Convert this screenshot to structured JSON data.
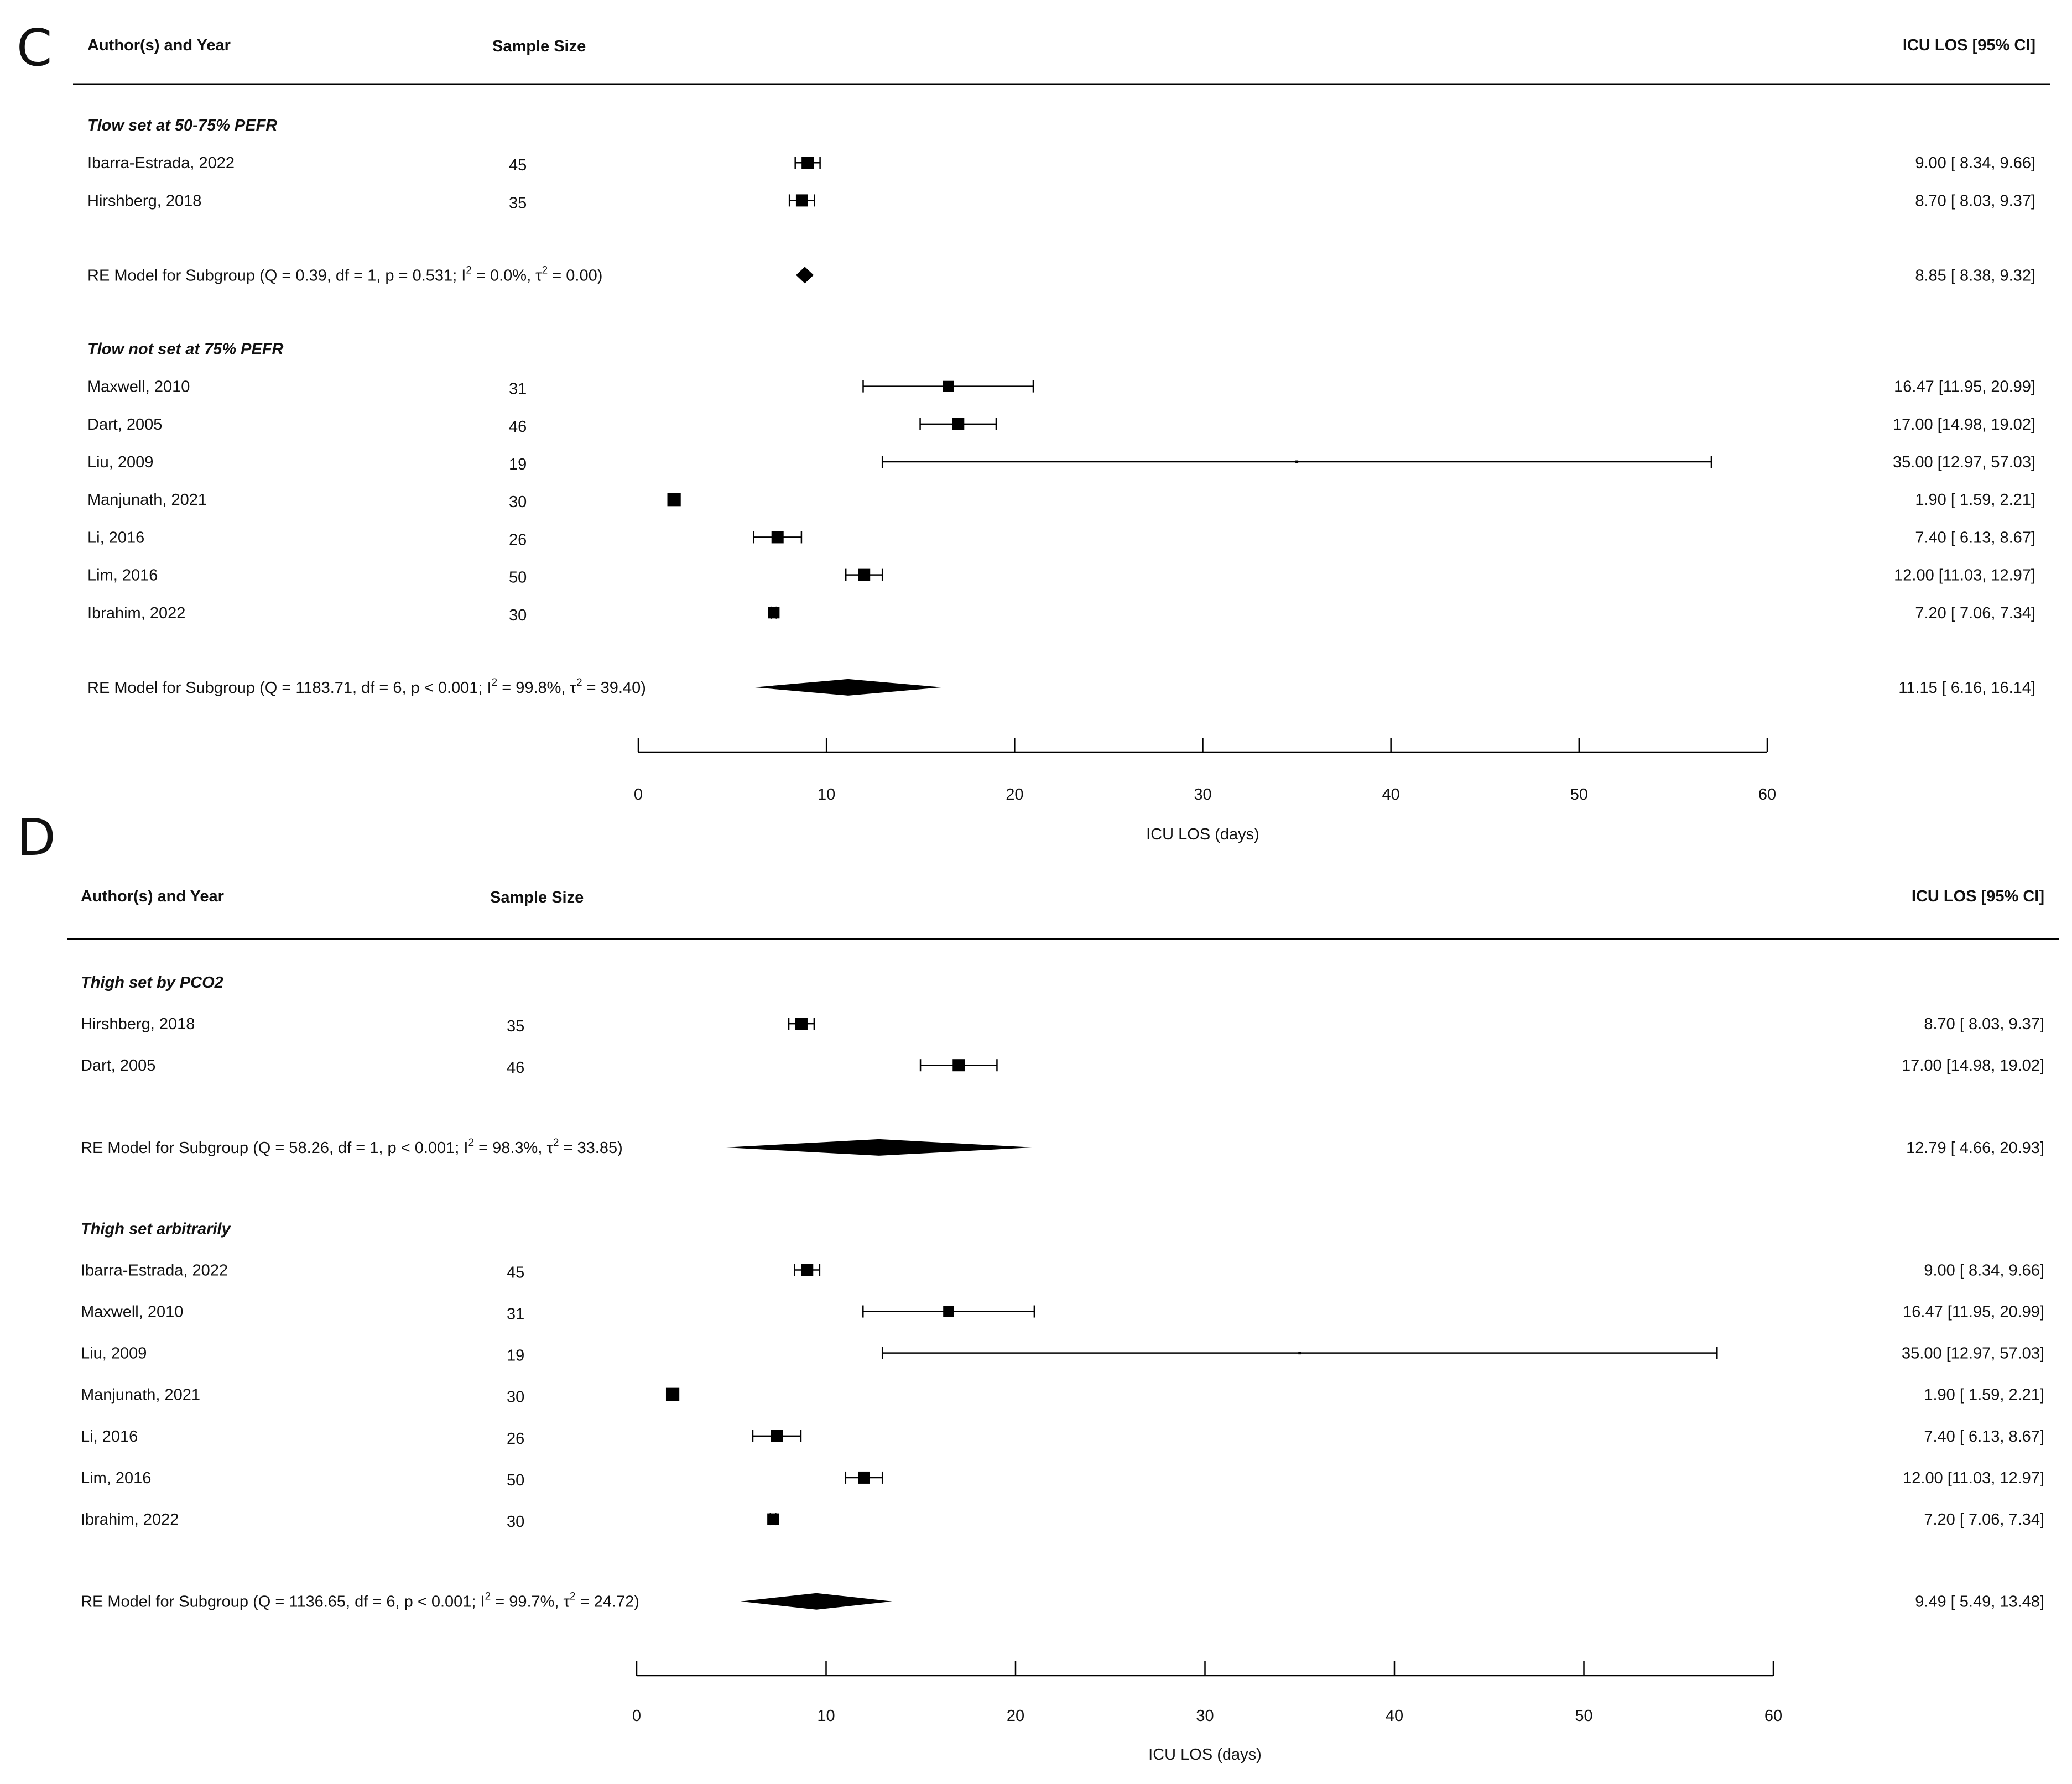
{
  "page": {
    "background": "#ffffff",
    "ink": "#000000"
  },
  "chart_data": [
    {
      "panel": "C",
      "type": "forest",
      "columns": {
        "study": "Author(s) and Year",
        "n": "Sample Size",
        "est": "ICU LOS [95% CI]"
      },
      "xlabel": "ICU LOS (days)",
      "xlim": [
        0,
        60
      ],
      "xticks": [
        0,
        10,
        20,
        30,
        40,
        50,
        60
      ],
      "xtick_labels": [
        "0",
        "10",
        "20",
        "30",
        "40",
        "50",
        "60"
      ],
      "subgroups": [
        {
          "title": "Tlow set at 50-75% PEFR",
          "studies": [
            {
              "study": "Ibarra-Estrada, 2022",
              "n": "45",
              "est": 9.0,
              "lo": 8.34,
              "hi": 9.66,
              "ci_text": "9.00 [ 8.34,  9.66]",
              "w": 1.0
            },
            {
              "study": "Hirshberg, 2018",
              "n": "35",
              "est": 8.7,
              "lo": 8.03,
              "hi": 9.37,
              "ci_text": "8.70 [ 8.03,  9.37]",
              "w": 1.0
            }
          ],
          "model": {
            "label": "RE Model for Subgroup (Q = 0.39, df = 1, p = 0.531; I",
            "sup1": "2",
            "mid": " = 0.0%, τ",
            "sup2": "2",
            "end": " = 0.00)",
            "est": 8.85,
            "lo": 8.38,
            "hi": 9.32,
            "ci_text": "8.85 [ 8.38,  9.32]"
          }
        },
        {
          "title": "Tlow not set at 75% PEFR",
          "studies": [
            {
              "study": "Maxwell, 2010",
              "n": "31",
              "est": 16.47,
              "lo": 11.95,
              "hi": 20.99,
              "ci_text": "16.47 [11.95, 20.99]",
              "w": 0.9
            },
            {
              "study": "Dart, 2005",
              "n": "46",
              "est": 17.0,
              "lo": 14.98,
              "hi": 19.02,
              "ci_text": "17.00 [14.98, 19.02]",
              "w": 1.0
            },
            {
              "study": "Liu, 2009",
              "n": "19",
              "est": 35.0,
              "lo": 12.97,
              "hi": 57.03,
              "ci_text": "35.00 [12.97, 57.03]",
              "w": 0.15
            },
            {
              "study": "Manjunath, 2021",
              "n": "30",
              "est": 1.9,
              "lo": 1.59,
              "hi": 2.21,
              "ci_text": "1.90 [ 1.59,  2.21]",
              "w": 1.1
            },
            {
              "study": "Li, 2016",
              "n": "26",
              "est": 7.4,
              "lo": 6.13,
              "hi": 8.67,
              "ci_text": "7.40 [ 6.13,  8.67]",
              "w": 1.0
            },
            {
              "study": "Lim, 2016",
              "n": "50",
              "est": 12.0,
              "lo": 11.03,
              "hi": 12.97,
              "ci_text": "12.00 [11.03, 12.97]",
              "w": 1.0
            },
            {
              "study": "Ibrahim, 2022",
              "n": "30",
              "est": 7.2,
              "lo": 7.06,
              "hi": 7.34,
              "ci_text": "7.20 [ 7.06,  7.34]",
              "w": 0.95
            }
          ],
          "model": {
            "label": "RE Model for Subgroup (Q = 1183.71, df = 6, p < 0.001; I",
            "sup1": "2",
            "mid": " = 99.8%, τ",
            "sup2": "2",
            "end": " = 39.40)",
            "est": 11.15,
            "lo": 6.16,
            "hi": 16.14,
            "ci_text": "11.15 [ 6.16, 16.14]"
          }
        }
      ]
    },
    {
      "panel": "D",
      "type": "forest",
      "columns": {
        "study": "Author(s) and Year",
        "n": "Sample Size",
        "est": "ICU LOS [95% CI]"
      },
      "xlabel": "ICU LOS (days)",
      "xlim": [
        0,
        60
      ],
      "xticks": [
        0,
        10,
        20,
        30,
        40,
        50,
        60
      ],
      "xtick_labels": [
        "0",
        "10",
        "20",
        "30",
        "40",
        "50",
        "60"
      ],
      "subgroups": [
        {
          "title": "Thigh set by PCO2",
          "studies": [
            {
              "study": "Hirshberg, 2018",
              "n": "35",
              "est": 8.7,
              "lo": 8.03,
              "hi": 9.37,
              "ci_text": "8.70 [ 8.03,  9.37]",
              "w": 1.0
            },
            {
              "study": "Dart, 2005",
              "n": "46",
              "est": 17.0,
              "lo": 14.98,
              "hi": 19.02,
              "ci_text": "17.00 [14.98, 19.02]",
              "w": 1.0
            }
          ],
          "model": {
            "label": "RE Model for Subgroup (Q = 58.26, df = 1, p < 0.001; I",
            "sup1": "2",
            "mid": " = 98.3%, τ",
            "sup2": "2",
            "end": " = 33.85)",
            "est": 12.79,
            "lo": 4.66,
            "hi": 20.93,
            "ci_text": "12.79 [ 4.66, 20.93]"
          }
        },
        {
          "title": "Thigh set arbitrarily",
          "studies": [
            {
              "study": "Ibarra-Estrada, 2022",
              "n": "45",
              "est": 9.0,
              "lo": 8.34,
              "hi": 9.66,
              "ci_text": "9.00 [ 8.34,  9.66]",
              "w": 1.0
            },
            {
              "study": "Maxwell, 2010",
              "n": "31",
              "est": 16.47,
              "lo": 11.95,
              "hi": 20.99,
              "ci_text": "16.47 [11.95, 20.99]",
              "w": 0.9
            },
            {
              "study": "Liu, 2009",
              "n": "19",
              "est": 35.0,
              "lo": 12.97,
              "hi": 57.03,
              "ci_text": "35.00 [12.97, 57.03]",
              "w": 0.15
            },
            {
              "study": "Manjunath, 2021",
              "n": "30",
              "est": 1.9,
              "lo": 1.59,
              "hi": 2.21,
              "ci_text": "1.90 [ 1.59,  2.21]",
              "w": 1.1
            },
            {
              "study": "Li, 2016",
              "n": "26",
              "est": 7.4,
              "lo": 6.13,
              "hi": 8.67,
              "ci_text": "7.40 [ 6.13,  8.67]",
              "w": 1.0
            },
            {
              "study": "Lim, 2016",
              "n": "50",
              "est": 12.0,
              "lo": 11.03,
              "hi": 12.97,
              "ci_text": "12.00 [11.03, 12.97]",
              "w": 1.0
            },
            {
              "study": "Ibrahim, 2022",
              "n": "30",
              "est": 7.2,
              "lo": 7.06,
              "hi": 7.34,
              "ci_text": "7.20 [ 7.06,  7.34]",
              "w": 0.95
            }
          ],
          "model": {
            "label": "RE Model for Subgroup (Q = 1136.65, df = 6, p < 0.001; I",
            "sup1": "2",
            "mid": " = 99.7%, τ",
            "sup2": "2",
            "end": " = 24.72)",
            "est": 9.49,
            "lo": 5.49,
            "hi": 13.48,
            "ci_text": "9.49 [ 5.49, 13.48]"
          }
        }
      ]
    }
  ]
}
